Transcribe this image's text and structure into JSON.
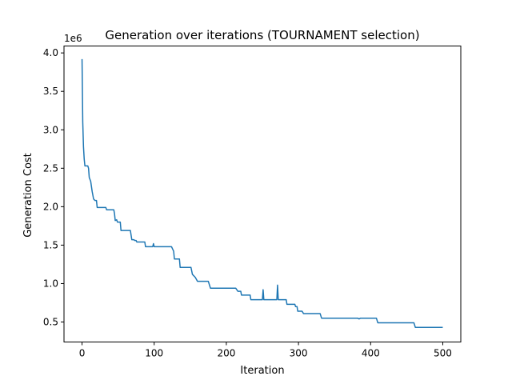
{
  "chart_data": {
    "type": "line",
    "title": "Generation over iterations (TOURNAMENT selection)",
    "xlabel": "Iteration",
    "ylabel": "Generation Cost",
    "y_multiplier_label": "1e6",
    "xlim": [
      -25,
      525
    ],
    "ylim": [
      0.24,
      4.09
    ],
    "y_unit_scale": 1000000,
    "xticks": [
      0,
      100,
      200,
      300,
      400,
      500
    ],
    "xtick_labels": [
      "0",
      "100",
      "200",
      "300",
      "400",
      "500"
    ],
    "yticks": [
      0.5,
      1.0,
      1.5,
      2.0,
      2.5,
      3.0,
      3.5,
      4.0
    ],
    "ytick_labels": [
      "0.5",
      "1.0",
      "1.5",
      "2.0",
      "2.5",
      "3.0",
      "3.5",
      "4.0"
    ],
    "grid": false,
    "legend": "none",
    "series": [
      {
        "color": "#1f77b4",
        "points": [
          [
            0,
            3.92
          ],
          [
            1,
            3.1
          ],
          [
            2,
            2.78
          ],
          [
            3,
            2.62
          ],
          [
            4,
            2.53
          ],
          [
            8,
            2.53
          ],
          [
            9,
            2.5
          ],
          [
            10,
            2.38
          ],
          [
            12,
            2.33
          ],
          [
            14,
            2.2
          ],
          [
            16,
            2.1
          ],
          [
            18,
            2.08
          ],
          [
            20,
            2.08
          ],
          [
            21,
            1.99
          ],
          [
            33,
            1.99
          ],
          [
            34,
            1.96
          ],
          [
            44,
            1.96
          ],
          [
            45,
            1.91
          ],
          [
            46,
            1.82
          ],
          [
            48,
            1.83
          ],
          [
            49,
            1.8
          ],
          [
            53,
            1.8
          ],
          [
            54,
            1.69
          ],
          [
            67,
            1.69
          ],
          [
            69,
            1.57
          ],
          [
            72,
            1.57
          ],
          [
            73,
            1.56
          ],
          [
            75,
            1.56
          ],
          [
            76,
            1.54
          ],
          [
            87,
            1.54
          ],
          [
            88,
            1.48
          ],
          [
            98,
            1.48
          ],
          [
            99,
            1.52
          ],
          [
            100,
            1.48
          ],
          [
            124,
            1.48
          ],
          [
            127,
            1.42
          ],
          [
            128,
            1.32
          ],
          [
            135,
            1.32
          ],
          [
            136,
            1.21
          ],
          [
            151,
            1.21
          ],
          [
            153,
            1.12
          ],
          [
            157,
            1.08
          ],
          [
            160,
            1.03
          ],
          [
            175,
            1.03
          ],
          [
            178,
            0.94
          ],
          [
            213,
            0.94
          ],
          [
            216,
            0.9
          ],
          [
            220,
            0.9
          ],
          [
            221,
            0.85
          ],
          [
            233,
            0.85
          ],
          [
            234,
            0.79
          ],
          [
            250,
            0.79
          ],
          [
            251,
            0.92
          ],
          [
            252,
            0.79
          ],
          [
            270,
            0.79
          ],
          [
            271,
            0.98
          ],
          [
            272,
            0.79
          ],
          [
            283,
            0.79
          ],
          [
            284,
            0.73
          ],
          [
            295,
            0.73
          ],
          [
            296,
            0.7
          ],
          [
            298,
            0.7
          ],
          [
            299,
            0.64
          ],
          [
            305,
            0.64
          ],
          [
            307,
            0.61
          ],
          [
            330,
            0.61
          ],
          [
            332,
            0.55
          ],
          [
            382,
            0.55
          ],
          [
            384,
            0.54
          ],
          [
            386,
            0.55
          ],
          [
            408,
            0.55
          ],
          [
            410,
            0.49
          ],
          [
            460,
            0.49
          ],
          [
            462,
            0.43
          ],
          [
            500,
            0.43
          ]
        ]
      }
    ]
  }
}
